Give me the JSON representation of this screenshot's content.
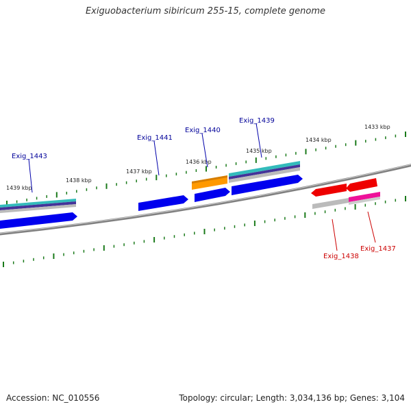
{
  "title": "Exiguobacterium sibiricum 255-15, complete genome",
  "accession": "Accession: NC_010556",
  "topology": "Topology: circular; Length: 3,034,136 bp; Genes: 3,104",
  "colors": {
    "backbone": "#808080",
    "forward_gene": "#0000ee",
    "reverse_gene": "#ee0000",
    "orange_gene": "#ff9900",
    "pink_gene": "#ee1199",
    "teal_band": "#33bbbb",
    "purple_band": "#443399",
    "grey_band": "#bbbbbb",
    "tick": "#1a7a1a",
    "forward_label": "#000099",
    "reverse_label": "#cc0000"
  },
  "kbp_labels": [
    "1439 kbp",
    "1438 kbp",
    "1437 kbp",
    "1436 kbp",
    "1435 kbp",
    "1434 kbp",
    "1433 kbp"
  ],
  "forward_labels": [
    "Exig_1443",
    "Exig_1441",
    "Exig_1440",
    "Exig_1439"
  ],
  "reverse_labels": [
    "Exig_1438",
    "Exig_1437"
  ]
}
